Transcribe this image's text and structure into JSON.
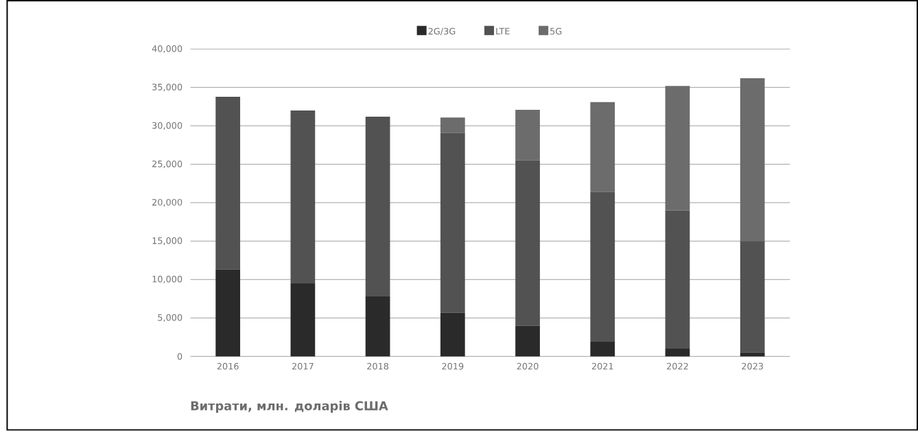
{
  "chart_data": {
    "type": "bar",
    "stacked": true,
    "categories": [
      "2016",
      "2017",
      "2018",
      "2019",
      "2020",
      "2021",
      "2022",
      "2023"
    ],
    "series": [
      {
        "name": "2G/3G",
        "color": "#2a2a2a",
        "values": [
          11300,
          9500,
          7800,
          5700,
          4000,
          1900,
          1000,
          500
        ]
      },
      {
        "name": "LTE",
        "color": "#525252",
        "values": [
          22500,
          22500,
          23400,
          23400,
          21500,
          19500,
          18000,
          14500
        ]
      },
      {
        "name": "5G",
        "color": "#6c6c6c",
        "values": [
          0,
          0,
          0,
          2000,
          6600,
          11700,
          16200,
          21200
        ]
      }
    ],
    "ylim": [
      0,
      40000
    ],
    "yticks": [
      {
        "value": 0,
        "label": "0"
      },
      {
        "value": 5000,
        "label": "5,000"
      },
      {
        "value": 10000,
        "label": "10,000"
      },
      {
        "value": 15000,
        "label": "15,000"
      },
      {
        "value": 20000,
        "label": "20,000"
      },
      {
        "value": 25000,
        "label": "25,000"
      },
      {
        "value": 30000,
        "label": "30,000"
      },
      {
        "value": 35000,
        "label": "35,000"
      },
      {
        "value": 40000,
        "label": "40,000"
      }
    ],
    "grid": "y",
    "legend": "top",
    "annotations": [
      "Витрати, млн. доларів США"
    ]
  }
}
